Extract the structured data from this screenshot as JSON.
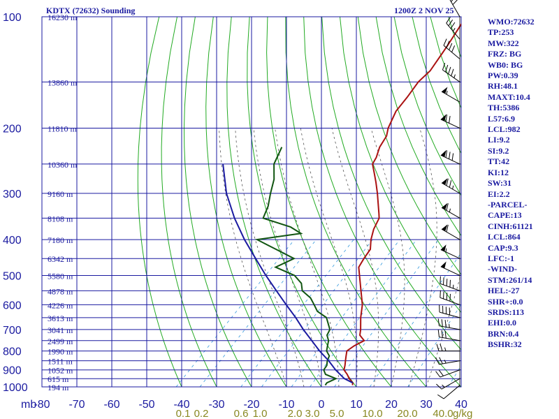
{
  "header": {
    "title": "KDTX (72632) Sounding",
    "time": "1200Z  2 NOV 25"
  },
  "stats": [
    "WMO:72632",
    "TP:253",
    "MW:322",
    "FRZ: BG",
    "WB0: BG",
    "PW:0.39",
    "RH:48.1",
    "MAXT:10.4",
    "TH:5386",
    "L57:6.9",
    "LCL:982",
    "LI:9.2",
    "SI:9.2",
    "TT:42",
    "KI:12",
    "SW:31",
    "EI:2.2",
    "-PARCEL-",
    "CAPE:13",
    "CINH:61121",
    "LCL:864",
    "CAP:9.3",
    "LFC:-1",
    "-WIND-",
    "STM:261/14",
    "HEL:-27",
    "SHR+:0.0",
    "SRDS:113",
    "EHI:0.0",
    "BRN:0.4",
    "BSHR:32"
  ],
  "colors": {
    "grid": "#1a1aa0",
    "dry_adiabat": "#22aa22",
    "moist_adiabat": "#555555",
    "mixing_ratio": "#3399dd",
    "temperature": "#aa1111",
    "dewpoint": "#115511",
    "parcel": "#1a1aa0",
    "axis_text": "#1a1aa0",
    "mixing_text": "#888820"
  },
  "chart_data": {
    "type": "line",
    "title": "KDTX (72632) Sounding",
    "y_scale": "log",
    "ylim": [
      1000,
      100
    ],
    "xlim": [
      -80,
      40
    ],
    "pressure_ticks": [
      100,
      200,
      300,
      400,
      500,
      600,
      700,
      800,
      900,
      1000
    ],
    "temperature_ticks": [
      -80,
      -70,
      -60,
      -50,
      -40,
      -30,
      -20,
      -10,
      0,
      10,
      20,
      30,
      40
    ],
    "temperature_tick_labels": [
      "-80",
      "-70",
      "-60",
      "-50",
      "-40",
      "-30",
      "-20",
      "-10",
      "0",
      "10",
      "20",
      "30",
      "40"
    ],
    "y_unit_label": "mb",
    "height_labels": [
      {
        "p": 100,
        "label": "16230 m"
      },
      {
        "p": 150,
        "label": "13860 m"
      },
      {
        "p": 200,
        "label": "11810 m"
      },
      {
        "p": 250,
        "label": "10360 m"
      },
      {
        "p": 300,
        "label": "9160 m"
      },
      {
        "p": 350,
        "label": "8108 m"
      },
      {
        "p": 400,
        "label": "7180 m"
      },
      {
        "p": 450,
        "label": "6342 m"
      },
      {
        "p": 500,
        "label": "5580 m"
      },
      {
        "p": 550,
        "label": "4878 m"
      },
      {
        "p": 600,
        "label": "4226 m"
      },
      {
        "p": 650,
        "label": "3613 m"
      },
      {
        "p": 700,
        "label": "3041 m"
      },
      {
        "p": 750,
        "label": "2499 m"
      },
      {
        "p": 800,
        "label": "1990 m"
      },
      {
        "p": 850,
        "label": "1511 m"
      },
      {
        "p": 900,
        "label": "1052 m"
      },
      {
        "p": 950,
        "label": "615 m"
      },
      {
        "p": 1000,
        "label": "194 m"
      }
    ],
    "mixing_ratio_labels": [
      "0.1",
      "0.2",
      "0.6",
      "1.0",
      "2.0",
      "3.0",
      "5.0",
      "10.0",
      "20.0",
      "40.0"
    ],
    "mixing_ratio_unit": "g/kg",
    "series": [
      {
        "name": "temperature",
        "points": [
          {
            "p": 989,
            "t": 8.4
          },
          {
            "p": 975,
            "t": 7.8
          },
          {
            "p": 950,
            "t": 5.6
          },
          {
            "p": 925,
            "t": 3.8
          },
          {
            "p": 900,
            "t": 1.6
          },
          {
            "p": 875,
            "t": 0.6
          },
          {
            "p": 850,
            "t": -0.6
          },
          {
            "p": 825,
            "t": -1.8
          },
          {
            "p": 800,
            "t": -3.0
          },
          {
            "p": 775,
            "t": -2.4
          },
          {
            "p": 750,
            "t": -1.0
          },
          {
            "p": 725,
            "t": -3.8
          },
          {
            "p": 700,
            "t": -5.2
          },
          {
            "p": 650,
            "t": -8.6
          },
          {
            "p": 600,
            "t": -11.8
          },
          {
            "p": 550,
            "t": -16.2
          },
          {
            "p": 500,
            "t": -21.0
          },
          {
            "p": 475,
            "t": -23.6
          },
          {
            "p": 450,
            "t": -24.6
          },
          {
            "p": 425,
            "t": -25.4
          },
          {
            "p": 400,
            "t": -28.0
          },
          {
            "p": 375,
            "t": -30.2
          },
          {
            "p": 350,
            "t": -31.8
          },
          {
            "p": 340,
            "t": -33.2
          },
          {
            "p": 300,
            "t": -39.4
          },
          {
            "p": 280,
            "t": -43.0
          },
          {
            "p": 265,
            "t": -46.0
          },
          {
            "p": 250,
            "t": -49.2
          },
          {
            "p": 240,
            "t": -50.0
          },
          {
            "p": 225,
            "t": -52.0
          },
          {
            "p": 210,
            "t": -53.2
          },
          {
            "p": 200,
            "t": -55.0
          },
          {
            "p": 180,
            "t": -57.6
          },
          {
            "p": 165,
            "t": -58.4
          },
          {
            "p": 150,
            "t": -59.6
          },
          {
            "p": 140,
            "t": -59.4
          },
          {
            "p": 120,
            "t": -61.6
          },
          {
            "p": 100,
            "t": -64.6
          }
        ]
      },
      {
        "name": "dewpoint",
        "points": [
          {
            "p": 989,
            "t": 0.6
          },
          {
            "p": 975,
            "t": 0.4
          },
          {
            "p": 950,
            "t": 1.8
          },
          {
            "p": 925,
            "t": -2.4
          },
          {
            "p": 900,
            "t": -4.2
          },
          {
            "p": 875,
            "t": -4.6
          },
          {
            "p": 850,
            "t": -5.8
          },
          {
            "p": 825,
            "t": -6.6
          },
          {
            "p": 800,
            "t": -8.8
          },
          {
            "p": 775,
            "t": -10.0
          },
          {
            "p": 750,
            "t": -11.2
          },
          {
            "p": 725,
            "t": -13.2
          },
          {
            "p": 700,
            "t": -14.0
          },
          {
            "p": 650,
            "t": -18.4
          },
          {
            "p": 625,
            "t": -22.8
          },
          {
            "p": 600,
            "t": -25.6
          },
          {
            "p": 575,
            "t": -28.6
          },
          {
            "p": 550,
            "t": -33.0
          },
          {
            "p": 525,
            "t": -35.4
          },
          {
            "p": 500,
            "t": -39.6
          },
          {
            "p": 475,
            "t": -47.4
          },
          {
            "p": 450,
            "t": -44.6
          },
          {
            "p": 425,
            "t": -52.4
          },
          {
            "p": 400,
            "t": -60.6
          },
          {
            "p": 385,
            "t": -49.8
          },
          {
            "p": 370,
            "t": -54.6
          },
          {
            "p": 350,
            "t": -65.0
          },
          {
            "p": 325,
            "t": -67.0
          },
          {
            "p": 300,
            "t": -70.0
          },
          {
            "p": 275,
            "t": -73.0
          },
          {
            "p": 250,
            "t": -77.4
          },
          {
            "p": 225,
            "t": -80.0
          }
        ]
      },
      {
        "name": "parcel",
        "points": [
          {
            "p": 975,
            "t": 7.8
          },
          {
            "p": 950,
            "t": 4.2
          },
          {
            "p": 900,
            "t": -0.8
          },
          {
            "p": 850,
            "t": -5.4
          },
          {
            "p": 800,
            "t": -10.8
          },
          {
            "p": 750,
            "t": -16.0
          },
          {
            "p": 700,
            "t": -21.6
          },
          {
            "p": 650,
            "t": -27.2
          },
          {
            "p": 600,
            "t": -33.6
          },
          {
            "p": 550,
            "t": -40.4
          },
          {
            "p": 500,
            "t": -47.8
          },
          {
            "p": 450,
            "t": -55.6
          },
          {
            "p": 400,
            "t": -64.2
          },
          {
            "p": 350,
            "t": -73.2
          },
          {
            "p": 300,
            "t": -82.6
          },
          {
            "p": 250,
            "t": -92.0
          }
        ]
      }
    ],
    "wind_barbs": [
      {
        "p": 990,
        "dir": 230,
        "spd": 10
      },
      {
        "p": 950,
        "dir": 240,
        "spd": 15
      },
      {
        "p": 900,
        "dir": 250,
        "spd": 20
      },
      {
        "p": 850,
        "dir": 260,
        "spd": 25
      },
      {
        "p": 800,
        "dir": 270,
        "spd": 25
      },
      {
        "p": 750,
        "dir": 280,
        "spd": 30
      },
      {
        "p": 700,
        "dir": 280,
        "spd": 35
      },
      {
        "p": 650,
        "dir": 285,
        "spd": 40
      },
      {
        "p": 600,
        "dir": 290,
        "spd": 40
      },
      {
        "p": 550,
        "dir": 290,
        "spd": 45
      },
      {
        "p": 500,
        "dir": 295,
        "spd": 50
      },
      {
        "p": 450,
        "dir": 295,
        "spd": 55
      },
      {
        "p": 400,
        "dir": 300,
        "spd": 60
      },
      {
        "p": 350,
        "dir": 300,
        "spd": 65
      },
      {
        "p": 300,
        "dir": 300,
        "spd": 75
      },
      {
        "p": 250,
        "dir": 295,
        "spd": 80
      },
      {
        "p": 200,
        "dir": 295,
        "spd": 70
      },
      {
        "p": 170,
        "dir": 300,
        "spd": 55
      },
      {
        "p": 150,
        "dir": 305,
        "spd": 45
      },
      {
        "p": 130,
        "dir": 310,
        "spd": 40
      },
      {
        "p": 115,
        "dir": 320,
        "spd": 35
      },
      {
        "p": 100,
        "dir": 330,
        "spd": 30
      }
    ]
  }
}
